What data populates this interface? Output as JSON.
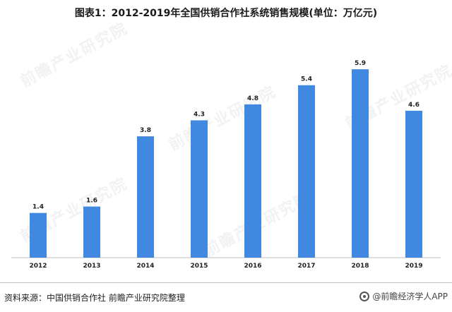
{
  "title": "图表1：2012-2019年全国供销合作社系统销售规模(单位：万亿元)",
  "footer": {
    "source": "资料来源：中国供销合作社 前瞻产业研究院整理",
    "brand": "@前瞻经济学人APP"
  },
  "watermark": "前瞻产业研究院",
  "colors": {
    "bar": "#4088e0",
    "axis": "#bfbfbf"
  },
  "chart_data": {
    "type": "bar",
    "categories": [
      "2012",
      "2013",
      "2014",
      "2015",
      "2016",
      "2017",
      "2018",
      "2019"
    ],
    "values": [
      1.4,
      1.6,
      3.8,
      4.3,
      4.8,
      5.4,
      5.9,
      4.6
    ],
    "title": "图表1：2012-2019年全国供销合作社系统销售规模(单位：万亿元)",
    "ylim": [
      0,
      6.3
    ],
    "grid": false,
    "legend": "none"
  }
}
